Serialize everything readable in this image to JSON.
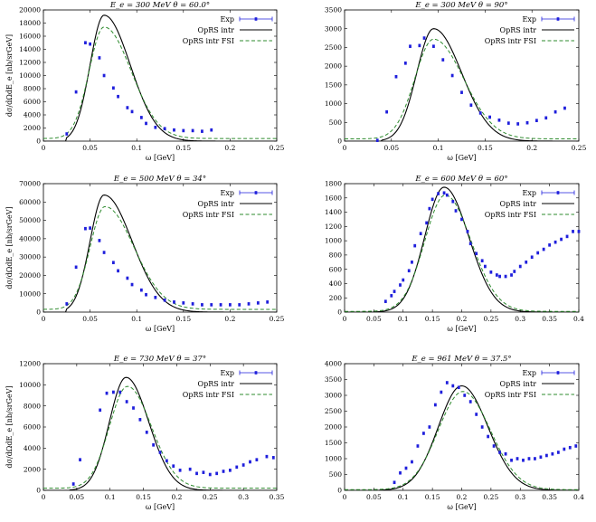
{
  "chart_data": [
    {
      "type": "scatter",
      "title": "E_e = 300 MeV θ = 60.0°",
      "xlabel": "ω [GeV]",
      "ylabel": "dσ/dΩdE_e [nb/srGeV]",
      "xlim": [
        0,
        0.25
      ],
      "ylim": [
        0,
        20000
      ],
      "xticks": [
        0,
        0.05,
        0.1,
        0.15,
        0.2,
        0.25
      ],
      "xtick_labels": [
        "0",
        "0.05",
        "0.1",
        "0.15",
        "0.2",
        "0.25"
      ],
      "yticks": [
        0,
        2000,
        4000,
        6000,
        8000,
        10000,
        12000,
        14000,
        16000,
        18000,
        20000
      ],
      "ytick_labels": [
        "0",
        "2000",
        "4000",
        "6000",
        "8000",
        "10000",
        "12000",
        "14000",
        "16000",
        "18000",
        "20000"
      ],
      "legend": {
        "position": "top-right",
        "entries": [
          "Exp",
          "OpRS intr",
          "OpRS intr FSI"
        ]
      },
      "series": [
        {
          "name": "OpRS intr",
          "shape": {
            "xstart": 0.025,
            "peak_x": 0.065,
            "peak_y": 19200,
            "sigma_left": 0.015,
            "sigma_right": 0.028,
            "baseline": 0
          }
        },
        {
          "name": "OpRS intr FSI",
          "shape": {
            "xstart": 0.0,
            "peak_x": 0.065,
            "peak_y": 17400,
            "sigma_left": 0.016,
            "sigma_right": 0.029,
            "baseline": 400
          }
        },
        {
          "name": "Exp",
          "x": [
            0.025,
            0.035,
            0.045,
            0.05,
            0.06,
            0.065,
            0.075,
            0.08,
            0.09,
            0.095,
            0.105,
            0.11,
            0.12,
            0.13,
            0.14,
            0.15,
            0.16,
            0.17,
            0.18
          ],
          "y": [
            1100,
            7500,
            15000,
            14800,
            12700,
            10000,
            8100,
            6800,
            5100,
            4500,
            3600,
            2700,
            2100,
            1900,
            1700,
            1600,
            1600,
            1500,
            1700
          ]
        }
      ]
    },
    {
      "type": "scatter",
      "title": "E_e = 300 MeV θ = 90°",
      "xlabel": "ω [GeV]",
      "ylabel": "",
      "xlim": [
        0,
        0.25
      ],
      "ylim": [
        0,
        3500
      ],
      "xticks": [
        0,
        0.05,
        0.1,
        0.15,
        0.2,
        0.25
      ],
      "xtick_labels": [
        "0",
        "0.05",
        "0.1",
        "0.15",
        "0.2",
        "0.25"
      ],
      "yticks": [
        0,
        500,
        1000,
        1500,
        2000,
        2500,
        3000,
        3500
      ],
      "ytick_labels": [
        "0",
        "500",
        "1000",
        "1500",
        "2000",
        "2500",
        "3000",
        "3500"
      ],
      "legend": {
        "position": "top-right",
        "entries": [
          "Exp",
          "OpRS intr",
          "OpRS intr FSI"
        ]
      },
      "series": [
        {
          "name": "OpRS intr",
          "shape": {
            "xstart": 0.04,
            "peak_x": 0.095,
            "peak_y": 3000,
            "sigma_left": 0.018,
            "sigma_right": 0.03,
            "baseline": 0
          }
        },
        {
          "name": "OpRS intr FSI",
          "shape": {
            "xstart": 0.0,
            "peak_x": 0.095,
            "peak_y": 2720,
            "sigma_left": 0.02,
            "sigma_right": 0.032,
            "baseline": 60
          }
        },
        {
          "name": "Exp",
          "x": [
            0.035,
            0.045,
            0.055,
            0.065,
            0.07,
            0.08,
            0.085,
            0.095,
            0.105,
            0.115,
            0.125,
            0.135,
            0.145,
            0.155,
            0.165,
            0.175,
            0.185,
            0.195,
            0.205,
            0.215,
            0.225,
            0.235
          ],
          "y": [
            20,
            780,
            1720,
            2080,
            2530,
            2550,
            2750,
            2530,
            2170,
            1750,
            1300,
            960,
            750,
            640,
            560,
            480,
            460,
            490,
            550,
            620,
            780,
            880
          ]
        }
      ]
    },
    {
      "type": "scatter",
      "title": "E_e = 500 MeV θ = 34°",
      "xlabel": "ω [GeV]",
      "ylabel": "dσ/dΩdE_e [nb/srGeV]",
      "xlim": [
        0,
        0.25
      ],
      "ylim": [
        0,
        70000
      ],
      "xticks": [
        0,
        0.05,
        0.1,
        0.15,
        0.2,
        0.25
      ],
      "xtick_labels": [
        "0",
        "0.05",
        "0.1",
        "0.15",
        "0.2",
        "0.25"
      ],
      "yticks": [
        0,
        10000,
        20000,
        30000,
        40000,
        50000,
        60000,
        70000
      ],
      "ytick_labels": [
        "0",
        "10000",
        "20000",
        "30000",
        "40000",
        "50000",
        "60000",
        "70000"
      ],
      "legend": {
        "position": "top-right",
        "entries": [
          "Exp",
          "OpRS intr",
          "OpRS intr FSI"
        ]
      },
      "series": [
        {
          "name": "OpRS intr",
          "shape": {
            "xstart": 0.025,
            "peak_x": 0.065,
            "peak_y": 63800,
            "sigma_left": 0.015,
            "sigma_right": 0.03,
            "baseline": 0
          }
        },
        {
          "name": "OpRS intr FSI",
          "shape": {
            "xstart": 0.0,
            "peak_x": 0.066,
            "peak_y": 57500,
            "sigma_left": 0.016,
            "sigma_right": 0.031,
            "baseline": 1500
          }
        },
        {
          "name": "Exp",
          "x": [
            0.025,
            0.035,
            0.045,
            0.05,
            0.06,
            0.065,
            0.075,
            0.08,
            0.09,
            0.095,
            0.105,
            0.11,
            0.12,
            0.13,
            0.14,
            0.15,
            0.16,
            0.17,
            0.18,
            0.19,
            0.2,
            0.21,
            0.22,
            0.23,
            0.24
          ],
          "y": [
            4500,
            24500,
            45500,
            45800,
            39000,
            32500,
            27000,
            22500,
            18500,
            15000,
            12000,
            9500,
            8000,
            6500,
            5500,
            5000,
            4500,
            4000,
            4000,
            4000,
            4000,
            4000,
            4500,
            5000,
            5500
          ]
        }
      ]
    },
    {
      "type": "scatter",
      "title": "E_e = 600 MeV θ = 60°",
      "xlabel": "ω [GeV]",
      "ylabel": "",
      "xlim": [
        0,
        0.4
      ],
      "ylim": [
        0,
        1800
      ],
      "xticks": [
        0,
        0.05,
        0.1,
        0.15,
        0.2,
        0.25,
        0.3,
        0.35,
        0.4
      ],
      "xtick_labels": [
        "0",
        "0.05",
        "0.1",
        "0.15",
        "0.2",
        "0.25",
        "0.3",
        "0.35",
        "0.4"
      ],
      "yticks": [
        0,
        200,
        400,
        600,
        800,
        1000,
        1200,
        1400,
        1600,
        1800
      ],
      "ytick_labels": [
        "0",
        "200",
        "400",
        "600",
        "800",
        "1000",
        "1200",
        "1400",
        "1600",
        "1800"
      ],
      "legend": {
        "position": "top-right",
        "entries": [
          "Exp",
          "OpRS intr",
          "OpRS intr FSI"
        ]
      },
      "series": [
        {
          "name": "OpRS intr",
          "shape": {
            "xstart": 0.05,
            "peak_x": 0.17,
            "peak_y": 1750,
            "sigma_left": 0.033,
            "sigma_right": 0.042,
            "baseline": 0
          }
        },
        {
          "name": "OpRS intr FSI",
          "shape": {
            "xstart": 0.0,
            "peak_x": 0.172,
            "peak_y": 1640,
            "sigma_left": 0.035,
            "sigma_right": 0.044,
            "baseline": 10
          }
        },
        {
          "name": "Exp",
          "x": [
            0.07,
            0.08,
            0.085,
            0.095,
            0.1,
            0.11,
            0.115,
            0.12,
            0.13,
            0.14,
            0.145,
            0.15,
            0.16,
            0.17,
            0.175,
            0.185,
            0.19,
            0.2,
            0.21,
            0.215,
            0.225,
            0.235,
            0.24,
            0.25,
            0.26,
            0.265,
            0.275,
            0.285,
            0.29,
            0.3,
            0.31,
            0.32,
            0.33,
            0.34,
            0.35,
            0.36,
            0.37,
            0.38,
            0.39,
            0.4
          ],
          "y": [
            150,
            230,
            290,
            380,
            450,
            580,
            700,
            930,
            1100,
            1250,
            1450,
            1580,
            1660,
            1670,
            1640,
            1550,
            1420,
            1300,
            1130,
            960,
            820,
            720,
            640,
            560,
            520,
            500,
            500,
            520,
            570,
            640,
            700,
            770,
            830,
            880,
            940,
            980,
            1020,
            1060,
            1130,
            1130
          ]
        }
      ]
    },
    {
      "type": "scatter",
      "title": "E_e = 730 MeV θ = 37°",
      "xlabel": "ω [GeV]",
      "ylabel": "dσ/dΩdE_e [nb/srGeV]",
      "xlim": [
        0,
        0.35
      ],
      "ylim": [
        0,
        12000
      ],
      "xticks": [
        0,
        0.05,
        0.1,
        0.15,
        0.2,
        0.25,
        0.3,
        0.35
      ],
      "xtick_labels": [
        "0",
        "0.05",
        "0.1",
        "0.15",
        "0.2",
        "0.25",
        "0.3",
        "0.35"
      ],
      "yticks": [
        0,
        2000,
        4000,
        6000,
        8000,
        10000,
        12000
      ],
      "ytick_labels": [
        "0",
        "2000",
        "4000",
        "6000",
        "8000",
        "10000",
        "12000"
      ],
      "legend": {
        "position": "top-right",
        "entries": [
          "Exp",
          "OpRS intr",
          "OpRS intr FSI"
        ]
      },
      "series": [
        {
          "name": "OpRS intr",
          "shape": {
            "xstart": 0.04,
            "peak_x": 0.124,
            "peak_y": 10700,
            "sigma_left": 0.025,
            "sigma_right": 0.034,
            "baseline": 0
          }
        },
        {
          "name": "OpRS intr FSI",
          "shape": {
            "xstart": 0.0,
            "peak_x": 0.126,
            "peak_y": 9850,
            "sigma_left": 0.027,
            "sigma_right": 0.036,
            "baseline": 200
          }
        },
        {
          "name": "Exp",
          "x": [
            0.045,
            0.055,
            0.085,
            0.095,
            0.105,
            0.115,
            0.125,
            0.135,
            0.145,
            0.155,
            0.165,
            0.175,
            0.185,
            0.195,
            0.205,
            0.22,
            0.23,
            0.24,
            0.25,
            0.26,
            0.27,
            0.28,
            0.29,
            0.3,
            0.31,
            0.32,
            0.335,
            0.345
          ],
          "y": [
            600,
            2900,
            7600,
            9200,
            9300,
            9300,
            8400,
            7800,
            6700,
            5500,
            4300,
            3600,
            2800,
            2300,
            1900,
            2000,
            1600,
            1700,
            1500,
            1600,
            1800,
            1900,
            2200,
            2400,
            2700,
            2900,
            3200,
            3100
          ]
        }
      ]
    },
    {
      "type": "scatter",
      "title": "E_e = 961 MeV θ = 37.5°",
      "xlabel": "ω [GeV]",
      "ylabel": "",
      "xlim": [
        0,
        0.4
      ],
      "ylim": [
        0,
        4000
      ],
      "xticks": [
        0,
        0.05,
        0.1,
        0.15,
        0.2,
        0.25,
        0.3,
        0.35,
        0.4
      ],
      "xtick_labels": [
        "0",
        "0.05",
        "0.1",
        "0.15",
        "0.2",
        "0.25",
        "0.3",
        "0.35",
        "0.4"
      ],
      "yticks": [
        0,
        500,
        1000,
        1500,
        2000,
        2500,
        3000,
        3500,
        4000
      ],
      "ytick_labels": [
        "0",
        "500",
        "1000",
        "1500",
        "2000",
        "2500",
        "3000",
        "3500",
        "4000"
      ],
      "legend": {
        "position": "top-right",
        "entries": [
          "Exp",
          "OpRS intr",
          "OpRS intr FSI"
        ]
      },
      "series": [
        {
          "name": "OpRS intr",
          "shape": {
            "xstart": 0.06,
            "peak_x": 0.2,
            "peak_y": 3300,
            "sigma_left": 0.04,
            "sigma_right": 0.045,
            "baseline": 0
          }
        },
        {
          "name": "OpRS intr FSI",
          "shape": {
            "xstart": 0.0,
            "peak_x": 0.202,
            "peak_y": 3120,
            "sigma_left": 0.042,
            "sigma_right": 0.047,
            "baseline": 20
          }
        },
        {
          "name": "Exp",
          "x": [
            0.085,
            0.095,
            0.105,
            0.115,
            0.125,
            0.135,
            0.145,
            0.155,
            0.165,
            0.175,
            0.185,
            0.195,
            0.205,
            0.215,
            0.225,
            0.235,
            0.245,
            0.255,
            0.265,
            0.275,
            0.285,
            0.295,
            0.305,
            0.315,
            0.325,
            0.335,
            0.345,
            0.355,
            0.365,
            0.375,
            0.385,
            0.395
          ],
          "y": [
            250,
            550,
            700,
            900,
            1400,
            1800,
            2000,
            2700,
            3100,
            3400,
            3300,
            3250,
            3000,
            2800,
            2400,
            2000,
            1700,
            1400,
            1200,
            1150,
            950,
            1000,
            950,
            1000,
            1000,
            1050,
            1100,
            1150,
            1200,
            1300,
            1350,
            1400
          ]
        }
      ]
    }
  ]
}
